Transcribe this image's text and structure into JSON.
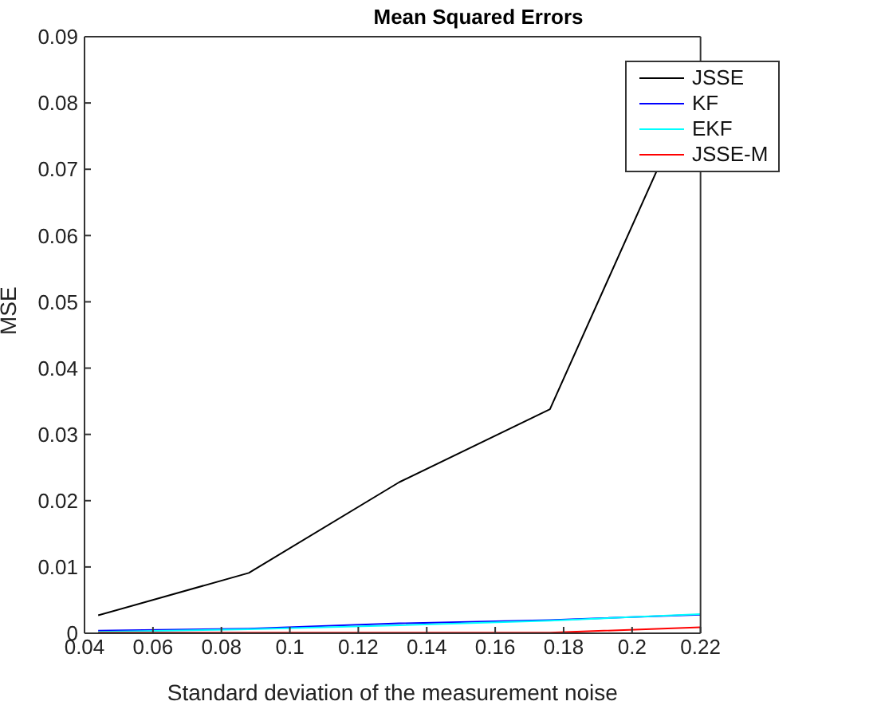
{
  "chart_data": {
    "type": "line",
    "title": "Mean Squared Errors",
    "xlabel": "Standard deviation of the measurement noise",
    "ylabel": "MSE",
    "x": [
      0.044,
      0.088,
      0.132,
      0.176,
      0.22
    ],
    "series": [
      {
        "name": "JSSE",
        "color": "#000000",
        "values": [
          0.0027,
          0.0091,
          0.0228,
          0.0338,
          0.0845
        ]
      },
      {
        "name": "KF",
        "color": "#0000ff",
        "values": [
          0.0004,
          0.0007,
          0.0015,
          0.002,
          0.0028
        ]
      },
      {
        "name": "EKF",
        "color": "#00ffff",
        "values": [
          0.0002,
          0.0006,
          0.0012,
          0.0019,
          0.0029
        ]
      },
      {
        "name": "JSSE-M",
        "color": "#ff0000",
        "values": [
          0.0001,
          0.0001,
          0.0001,
          0.0001,
          0.0009
        ]
      }
    ],
    "xlim": [
      0.04,
      0.22
    ],
    "xticks": [
      0.04,
      0.06,
      0.08,
      0.1,
      0.12,
      0.14,
      0.16,
      0.18,
      0.2,
      0.22
    ],
    "ylim": [
      0,
      0.09
    ],
    "yticks": [
      0,
      0.01,
      0.02,
      0.03,
      0.04,
      0.05,
      0.06,
      0.07,
      0.08,
      0.09
    ],
    "grid": false,
    "legend": "top right",
    "marker": "none",
    "line_style": "solid"
  }
}
